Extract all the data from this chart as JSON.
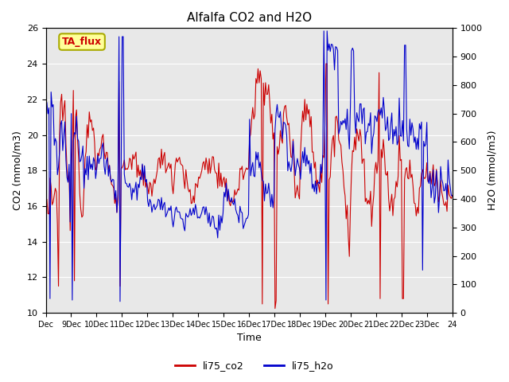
{
  "title": "Alfalfa CO2 and H2O",
  "xlabel": "Time",
  "ylabel_left": "CO2 (mmol/m3)",
  "ylabel_right": "H2O (mmol/m3)",
  "annotation": "TA_flux",
  "ylim_left": [
    10,
    26
  ],
  "ylim_right": [
    0,
    1000
  ],
  "yticks_left": [
    10,
    12,
    14,
    16,
    18,
    20,
    22,
    24,
    26
  ],
  "yticks_right": [
    0,
    100,
    200,
    300,
    400,
    500,
    600,
    700,
    800,
    900,
    1000
  ],
  "xtick_labels": [
    "Dec",
    "9Dec",
    "10Dec",
    "11Dec",
    "12Dec",
    "13Dec",
    "14Dec",
    "15Dec",
    "16Dec",
    "17Dec",
    "18Dec",
    "19Dec",
    "20Dec",
    "21Dec",
    "22Dec",
    "23Dec",
    "24"
  ],
  "color_co2": "#cc0000",
  "color_h2o": "#0000cc",
  "legend_label_co2": "li75_co2",
  "legend_label_h2o": "li75_h2o",
  "bg_color": "#e8e8e8",
  "annotation_bg": "#ffff99",
  "annotation_border": "#aaaa00",
  "annotation_text_color": "#cc0000",
  "title_fontsize": 11,
  "axis_fontsize": 9,
  "tick_fontsize": 8,
  "xtick_fontsize": 7
}
